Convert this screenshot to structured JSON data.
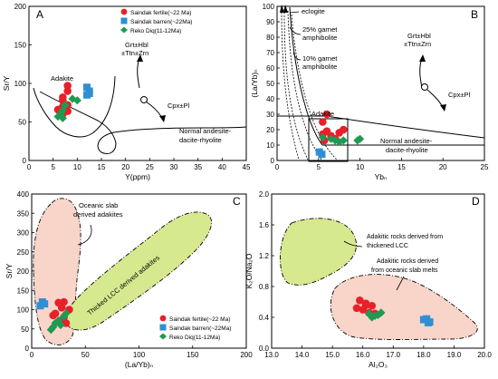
{
  "legend": {
    "saindak_fertile": "Saindak fertile(~22 Ma)",
    "saindak_barren": "Saindak barren(~22Ma)",
    "reko_diq": "Reko Diq(11-12Ma)"
  },
  "colors": {
    "fertile": "#e8202a",
    "barren": "#2f8fd4",
    "reko": "#1e9a52",
    "slab_fill": "#f8d5c8",
    "lcc_fill": "#d6e98f"
  },
  "chart_data": [
    {
      "id": "A",
      "type": "scatter",
      "panel_label": "A",
      "xlabel": "Y(ppm)",
      "ylabel": "Sr/Y",
      "xlim": [
        0,
        45
      ],
      "ylim": [
        0,
        200
      ],
      "xticks": [
        0,
        5,
        10,
        15,
        20,
        25,
        30,
        35,
        40,
        45
      ],
      "yticks": [
        0,
        50,
        100,
        150,
        200
      ],
      "annotations": {
        "adakite": "Adakite",
        "grt_line1": "Grt±Hbl",
        "grt_line2": "±Ttn±Zrn",
        "cpx": "Cpx±Pl",
        "normal_line1": "Normal andesite-",
        "normal_line2": "dacite-rhyolite"
      },
      "series": [
        {
          "name": "Saindak fertile(~22 Ma)",
          "group": "fertile",
          "x": [
            8,
            8,
            7,
            7,
            8,
            7,
            6,
            8,
            7
          ],
          "y": [
            97,
            90,
            82,
            78,
            72,
            70,
            66,
            64,
            60
          ]
        },
        {
          "name": "Saindak barren(~22Ma)",
          "group": "barren",
          "x": [
            12,
            12.5,
            12,
            12.5
          ],
          "y": [
            95,
            90,
            85,
            87
          ]
        },
        {
          "name": "Reko Diq(11-12Ma)",
          "group": "reko",
          "x": [
            9,
            10,
            7.5,
            7,
            6,
            7,
            6.5
          ],
          "y": [
            80,
            78,
            72,
            65,
            57,
            55,
            60
          ]
        }
      ]
    },
    {
      "id": "B",
      "type": "scatter",
      "panel_label": "B",
      "xlabel": "Ybₙ",
      "ylabel": "(La/Yb)ₙ",
      "xlim": [
        0,
        25
      ],
      "ylim": [
        0,
        100
      ],
      "xticks": [
        0,
        5,
        10,
        15,
        20,
        25
      ],
      "yticks": [
        0,
        10,
        20,
        30,
        40,
        50,
        60,
        70,
        80,
        90,
        100
      ],
      "annotations": {
        "eclogite": "eclogite",
        "garnet25_line1": "25% garnet",
        "garnet25_line2": "amphibolite",
        "garnet10_line1": "10% garnet",
        "garnet10_line2": "amphibolite",
        "adakite": "Adakite",
        "grt_line1": "Grt±Hbl",
        "grt_line2": "±Ttn±Zrn",
        "cpx": "Cpx±Pl",
        "normal_line1": "Normal andesite-",
        "normal_line2": "dacite-rhyolite"
      },
      "series": [
        {
          "name": "Saindak fertile(~22 Ma)",
          "group": "fertile",
          "x": [
            6,
            5.5,
            6,
            5.5,
            6.5,
            7,
            8,
            7.5,
            5.7
          ],
          "y": [
            30,
            25,
            19,
            17,
            16,
            14,
            20,
            18,
            13
          ]
        },
        {
          "name": "Saindak barren(~22Ma)",
          "group": "barren",
          "x": [
            5.1,
            5.4
          ],
          "y": [
            5.5,
            4
          ]
        },
        {
          "name": "Reko Diq(11-12Ma)",
          "group": "reko",
          "x": [
            6.5,
            7,
            7.5,
            8,
            9.7,
            10,
            5.5
          ],
          "y": [
            14,
            13,
            12,
            13,
            13,
            14,
            15
          ]
        }
      ]
    },
    {
      "id": "C",
      "type": "scatter",
      "panel_label": "C",
      "xlabel": "(La/Yb)ₙ",
      "ylabel": "Sr/Y",
      "xlim": [
        0,
        200
      ],
      "ylim": [
        0,
        400
      ],
      "xticks": [
        0,
        50,
        100,
        150,
        200
      ],
      "yticks": [
        0,
        50,
        100,
        150,
        200,
        250,
        300,
        350,
        400
      ],
      "annotations": {
        "oceanic_line1": "Oceanic slab",
        "oceanic_line2": "derived adakites",
        "thicked": "Thicked LCC derived adakites"
      },
      "series": [
        {
          "name": "Saindak fertile(~22 Ma)",
          "group": "fertile",
          "x": [
            25,
            30,
            28,
            35,
            22,
            20,
            30,
            32,
            27
          ],
          "y": [
            118,
            120,
            105,
            100,
            90,
            85,
            80,
            65,
            70
          ]
        },
        {
          "name": "Saindak barren(~22Ma)",
          "group": "barren",
          "x": [
            10,
            8,
            12
          ],
          "y": [
            120,
            110,
            115
          ]
        },
        {
          "name": "Reko Diq(11-12Ma)",
          "group": "reko",
          "x": [
            30,
            25,
            27,
            22,
            20,
            18,
            32
          ],
          "y": [
            82,
            72,
            60,
            65,
            55,
            48,
            90
          ]
        }
      ],
      "legend": "bottom-right"
    },
    {
      "id": "D",
      "type": "scatter",
      "panel_label": "D",
      "xlabel": "Al₂O₃",
      "ylabel": "K₂O/Na₂O",
      "xlim": [
        13,
        20
      ],
      "ylim": [
        0,
        2.0
      ],
      "xticks": [
        13,
        14,
        15,
        16,
        17,
        18,
        19,
        20
      ],
      "yticks": [
        0,
        0.4,
        0.8,
        1.2,
        1.6,
        2.0
      ],
      "annotations": {
        "lcc_line1": "Adakitic rocks derived from",
        "lcc_line2": "thickened LCC",
        "slab_line1": "Adakitic rocks derived",
        "slab_line2": "from oceanic slab melts"
      },
      "series": [
        {
          "name": "Saindak fertile(~22 Ma)",
          "group": "fertile",
          "x": [
            15.9,
            16.1,
            16.3,
            16.0,
            16.2,
            16.4,
            15.8,
            16.1
          ],
          "y": [
            0.62,
            0.56,
            0.55,
            0.5,
            0.46,
            0.45,
            0.52,
            0.58
          ]
        },
        {
          "name": "Saindak barren(~22Ma)",
          "group": "barren",
          "x": [
            18.0,
            18.1,
            18.2,
            18.15
          ],
          "y": [
            0.37,
            0.38,
            0.34,
            0.33
          ]
        },
        {
          "name": "Reko Diq(11-12Ma)",
          "group": "reko",
          "x": [
            16.2,
            16.4,
            16.6,
            16.3,
            16.5
          ],
          "y": [
            0.45,
            0.42,
            0.46,
            0.4,
            0.43
          ]
        }
      ]
    }
  ]
}
